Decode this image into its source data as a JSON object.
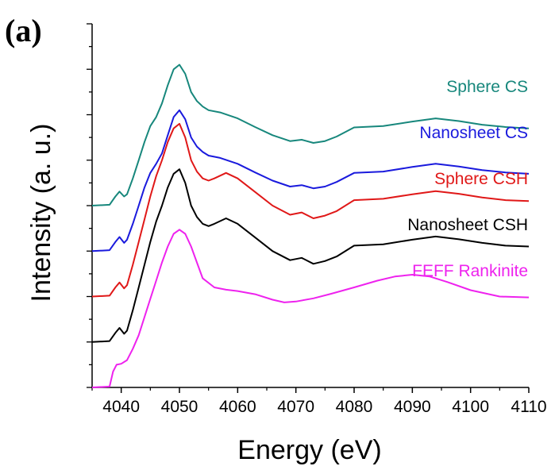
{
  "panel_label": "(a)",
  "chart_data": {
    "type": "line",
    "title": "",
    "xlabel": "Energy (eV)",
    "ylabel": "Intensity (a. u.)",
    "xlim": [
      4035,
      4110
    ],
    "ylim": [
      0,
      8
    ],
    "x_ticks": [
      4040,
      4050,
      4060,
      4070,
      4080,
      4090,
      4100,
      4110
    ],
    "y_tick_labels_shown": false,
    "y_minor_ticks": [
      0,
      0.5,
      1,
      1.5,
      2,
      2.5,
      3,
      3.5,
      4,
      4.5,
      5,
      5.5,
      6,
      6.5,
      7,
      7.5,
      8
    ],
    "grid": false,
    "legend": "inline labels at right of each curve",
    "series": [
      {
        "name": "Sphere CS",
        "color": "#17877c",
        "x": [
          4035,
          4038,
          4039,
          4039.7,
          4040.5,
          4041,
          4042,
          4043,
          4044,
          4045,
          4046,
          4047,
          4048,
          4049,
          4050,
          4051,
          4052,
          4053,
          4054,
          4055,
          4057,
          4060,
          4063,
          4066,
          4069,
          4071,
          4073,
          4075,
          4077,
          4080,
          4085,
          4090,
          4094,
          4098,
          4102,
          4106,
          4110
        ],
        "y": [
          4.0,
          4.02,
          4.2,
          4.31,
          4.2,
          4.25,
          4.6,
          5.0,
          5.4,
          5.75,
          5.95,
          6.25,
          6.65,
          7.0,
          7.1,
          6.9,
          6.5,
          6.3,
          6.18,
          6.1,
          6.05,
          5.92,
          5.73,
          5.55,
          5.42,
          5.45,
          5.38,
          5.42,
          5.52,
          5.72,
          5.75,
          5.85,
          5.92,
          5.86,
          5.78,
          5.73,
          5.7
        ]
      },
      {
        "name": "Nanosheet CS",
        "color": "#1a1add",
        "x": [
          4035,
          4038,
          4039,
          4039.7,
          4040.5,
          4041,
          4042,
          4043,
          4044,
          4045,
          4046,
          4047,
          4048,
          4049,
          4050,
          4051,
          4052,
          4053,
          4054,
          4055,
          4057,
          4060,
          4063,
          4066,
          4069,
          4071,
          4073,
          4075,
          4077,
          4080,
          4085,
          4090,
          4094,
          4098,
          4102,
          4106,
          4110
        ],
        "y": [
          3.0,
          3.02,
          3.2,
          3.31,
          3.18,
          3.25,
          3.6,
          4.0,
          4.4,
          4.72,
          4.92,
          5.15,
          5.55,
          5.95,
          6.1,
          5.9,
          5.5,
          5.3,
          5.18,
          5.1,
          5.05,
          4.92,
          4.73,
          4.55,
          4.42,
          4.45,
          4.38,
          4.42,
          4.52,
          4.72,
          4.75,
          4.85,
          4.92,
          4.86,
          4.78,
          4.73,
          4.7
        ]
      },
      {
        "name": "Sphere CSH",
        "color": "#e01818",
        "x": [
          4035,
          4038,
          4039,
          4039.7,
          4040.5,
          4041,
          4042,
          4043,
          4044,
          4045,
          4046,
          4047,
          4048,
          4049,
          4050,
          4051,
          4052,
          4053,
          4054,
          4055,
          4056,
          4058,
          4060,
          4063,
          4066,
          4069,
          4071,
          4073,
          4075,
          4077,
          4080,
          4085,
          4090,
          4094,
          4098,
          4102,
          4106,
          4110
        ],
        "y": [
          2.0,
          2.02,
          2.2,
          2.31,
          2.18,
          2.25,
          2.7,
          3.2,
          3.7,
          4.2,
          4.65,
          5.0,
          5.4,
          5.7,
          5.8,
          5.5,
          5.0,
          4.75,
          4.6,
          4.55,
          4.6,
          4.72,
          4.6,
          4.3,
          4.0,
          3.8,
          3.85,
          3.72,
          3.78,
          3.88,
          4.12,
          4.15,
          4.25,
          4.32,
          4.26,
          4.18,
          4.12,
          4.1
        ]
      },
      {
        "name": "Nanosheet CSH",
        "color": "#000000",
        "x": [
          4035,
          4038,
          4039,
          4039.7,
          4040.5,
          4041,
          4042,
          4043,
          4044,
          4045,
          4046,
          4047,
          4048,
          4049,
          4050,
          4051,
          4052,
          4053,
          4054,
          4055,
          4056,
          4058,
          4060,
          4063,
          4066,
          4069,
          4071,
          4073,
          4075,
          4077,
          4080,
          4085,
          4090,
          4094,
          4098,
          4102,
          4106,
          4110
        ],
        "y": [
          1.0,
          1.02,
          1.2,
          1.31,
          1.18,
          1.25,
          1.7,
          2.2,
          2.7,
          3.2,
          3.65,
          4.0,
          4.4,
          4.7,
          4.8,
          4.5,
          4.0,
          3.75,
          3.6,
          3.55,
          3.6,
          3.72,
          3.6,
          3.3,
          3.0,
          2.8,
          2.85,
          2.72,
          2.78,
          2.88,
          3.12,
          3.15,
          3.25,
          3.32,
          3.26,
          3.18,
          3.12,
          3.1
        ]
      },
      {
        "name": "FEFF Rankinite",
        "color": "#ee22ee",
        "x": [
          4035,
          4038,
          4038.6,
          4039.2,
          4040,
          4041,
          4042,
          4043,
          4044,
          4045,
          4046,
          4047,
          4048,
          4049,
          4050,
          4051,
          4052,
          4053,
          4054,
          4056,
          4058,
          4060,
          4063,
          4066,
          4068,
          4070,
          4073,
          4076,
          4080,
          4084,
          4087,
          4090,
          4093,
          4096,
          4100,
          4105,
          4110
        ],
        "y": [
          0.0,
          0.02,
          0.35,
          0.5,
          0.52,
          0.6,
          0.85,
          1.15,
          1.55,
          1.95,
          2.35,
          2.75,
          3.1,
          3.38,
          3.47,
          3.38,
          3.1,
          2.75,
          2.4,
          2.2,
          2.15,
          2.12,
          2.05,
          1.93,
          1.87,
          1.89,
          1.96,
          2.06,
          2.2,
          2.35,
          2.44,
          2.48,
          2.44,
          2.32,
          2.14,
          2.0,
          1.98
        ]
      }
    ]
  }
}
